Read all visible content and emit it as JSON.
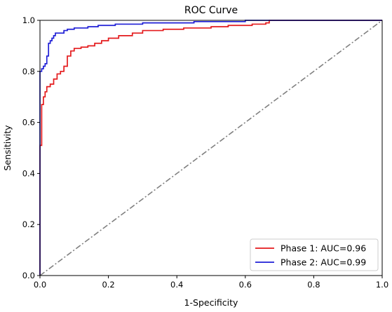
{
  "chart_data": {
    "type": "line",
    "title": "ROC Curve",
    "xlabel": "1-Specificity",
    "ylabel": "Sensitivity",
    "xlim": [
      0,
      1
    ],
    "ylim": [
      0,
      1
    ],
    "xticks": [
      "0.0",
      "0.2",
      "0.4",
      "0.6",
      "0.8",
      "1.0"
    ],
    "yticks": [
      "0.0",
      "0.2",
      "0.4",
      "0.6",
      "0.8",
      "1.0"
    ],
    "grid": false,
    "legend_position": "bottom-right",
    "series": [
      {
        "name": "Phase 1: AUC=0.96",
        "color": "#e41a1c",
        "points": [
          [
            0.0,
            0.0
          ],
          [
            0.0,
            0.51
          ],
          [
            0.005,
            0.51
          ],
          [
            0.005,
            0.67
          ],
          [
            0.01,
            0.67
          ],
          [
            0.01,
            0.7
          ],
          [
            0.015,
            0.7
          ],
          [
            0.015,
            0.72
          ],
          [
            0.02,
            0.72
          ],
          [
            0.02,
            0.74
          ],
          [
            0.03,
            0.74
          ],
          [
            0.03,
            0.75
          ],
          [
            0.04,
            0.75
          ],
          [
            0.04,
            0.77
          ],
          [
            0.05,
            0.77
          ],
          [
            0.05,
            0.79
          ],
          [
            0.06,
            0.79
          ],
          [
            0.06,
            0.8
          ],
          [
            0.07,
            0.8
          ],
          [
            0.07,
            0.82
          ],
          [
            0.08,
            0.82
          ],
          [
            0.08,
            0.86
          ],
          [
            0.09,
            0.86
          ],
          [
            0.09,
            0.88
          ],
          [
            0.1,
            0.88
          ],
          [
            0.1,
            0.89
          ],
          [
            0.12,
            0.89
          ],
          [
            0.12,
            0.895
          ],
          [
            0.14,
            0.895
          ],
          [
            0.14,
            0.9
          ],
          [
            0.16,
            0.9
          ],
          [
            0.16,
            0.91
          ],
          [
            0.18,
            0.91
          ],
          [
            0.18,
            0.92
          ],
          [
            0.2,
            0.92
          ],
          [
            0.2,
            0.93
          ],
          [
            0.23,
            0.93
          ],
          [
            0.23,
            0.94
          ],
          [
            0.27,
            0.94
          ],
          [
            0.27,
            0.95
          ],
          [
            0.3,
            0.95
          ],
          [
            0.3,
            0.96
          ],
          [
            0.36,
            0.96
          ],
          [
            0.36,
            0.965
          ],
          [
            0.42,
            0.965
          ],
          [
            0.42,
            0.97
          ],
          [
            0.5,
            0.97
          ],
          [
            0.5,
            0.975
          ],
          [
            0.55,
            0.975
          ],
          [
            0.55,
            0.98
          ],
          [
            0.62,
            0.98
          ],
          [
            0.62,
            0.985
          ],
          [
            0.66,
            0.985
          ],
          [
            0.66,
            0.99
          ],
          [
            0.67,
            0.99
          ],
          [
            0.67,
            1.0
          ],
          [
            1.0,
            1.0
          ]
        ]
      },
      {
        "name": "Phase 2: AUC=0.99",
        "color": "#1f1fd6",
        "points": [
          [
            0.0,
            0.0
          ],
          [
            0.0,
            0.8
          ],
          [
            0.005,
            0.8
          ],
          [
            0.005,
            0.81
          ],
          [
            0.01,
            0.81
          ],
          [
            0.01,
            0.82
          ],
          [
            0.015,
            0.82
          ],
          [
            0.015,
            0.83
          ],
          [
            0.02,
            0.83
          ],
          [
            0.02,
            0.86
          ],
          [
            0.025,
            0.86
          ],
          [
            0.025,
            0.91
          ],
          [
            0.03,
            0.91
          ],
          [
            0.03,
            0.92
          ],
          [
            0.035,
            0.92
          ],
          [
            0.035,
            0.93
          ],
          [
            0.04,
            0.93
          ],
          [
            0.04,
            0.94
          ],
          [
            0.045,
            0.94
          ],
          [
            0.045,
            0.95
          ],
          [
            0.07,
            0.95
          ],
          [
            0.07,
            0.96
          ],
          [
            0.08,
            0.96
          ],
          [
            0.08,
            0.965
          ],
          [
            0.1,
            0.965
          ],
          [
            0.1,
            0.97
          ],
          [
            0.14,
            0.97
          ],
          [
            0.14,
            0.975
          ],
          [
            0.17,
            0.975
          ],
          [
            0.17,
            0.98
          ],
          [
            0.22,
            0.98
          ],
          [
            0.22,
            0.985
          ],
          [
            0.3,
            0.985
          ],
          [
            0.3,
            0.99
          ],
          [
            0.45,
            0.99
          ],
          [
            0.45,
            0.995
          ],
          [
            0.6,
            0.995
          ],
          [
            0.6,
            1.0
          ],
          [
            1.0,
            1.0
          ]
        ]
      },
      {
        "name": "",
        "color": "#808080",
        "style": "dashdot",
        "points": [
          [
            0.0,
            0.0
          ],
          [
            1.0,
            1.0
          ]
        ]
      }
    ]
  }
}
